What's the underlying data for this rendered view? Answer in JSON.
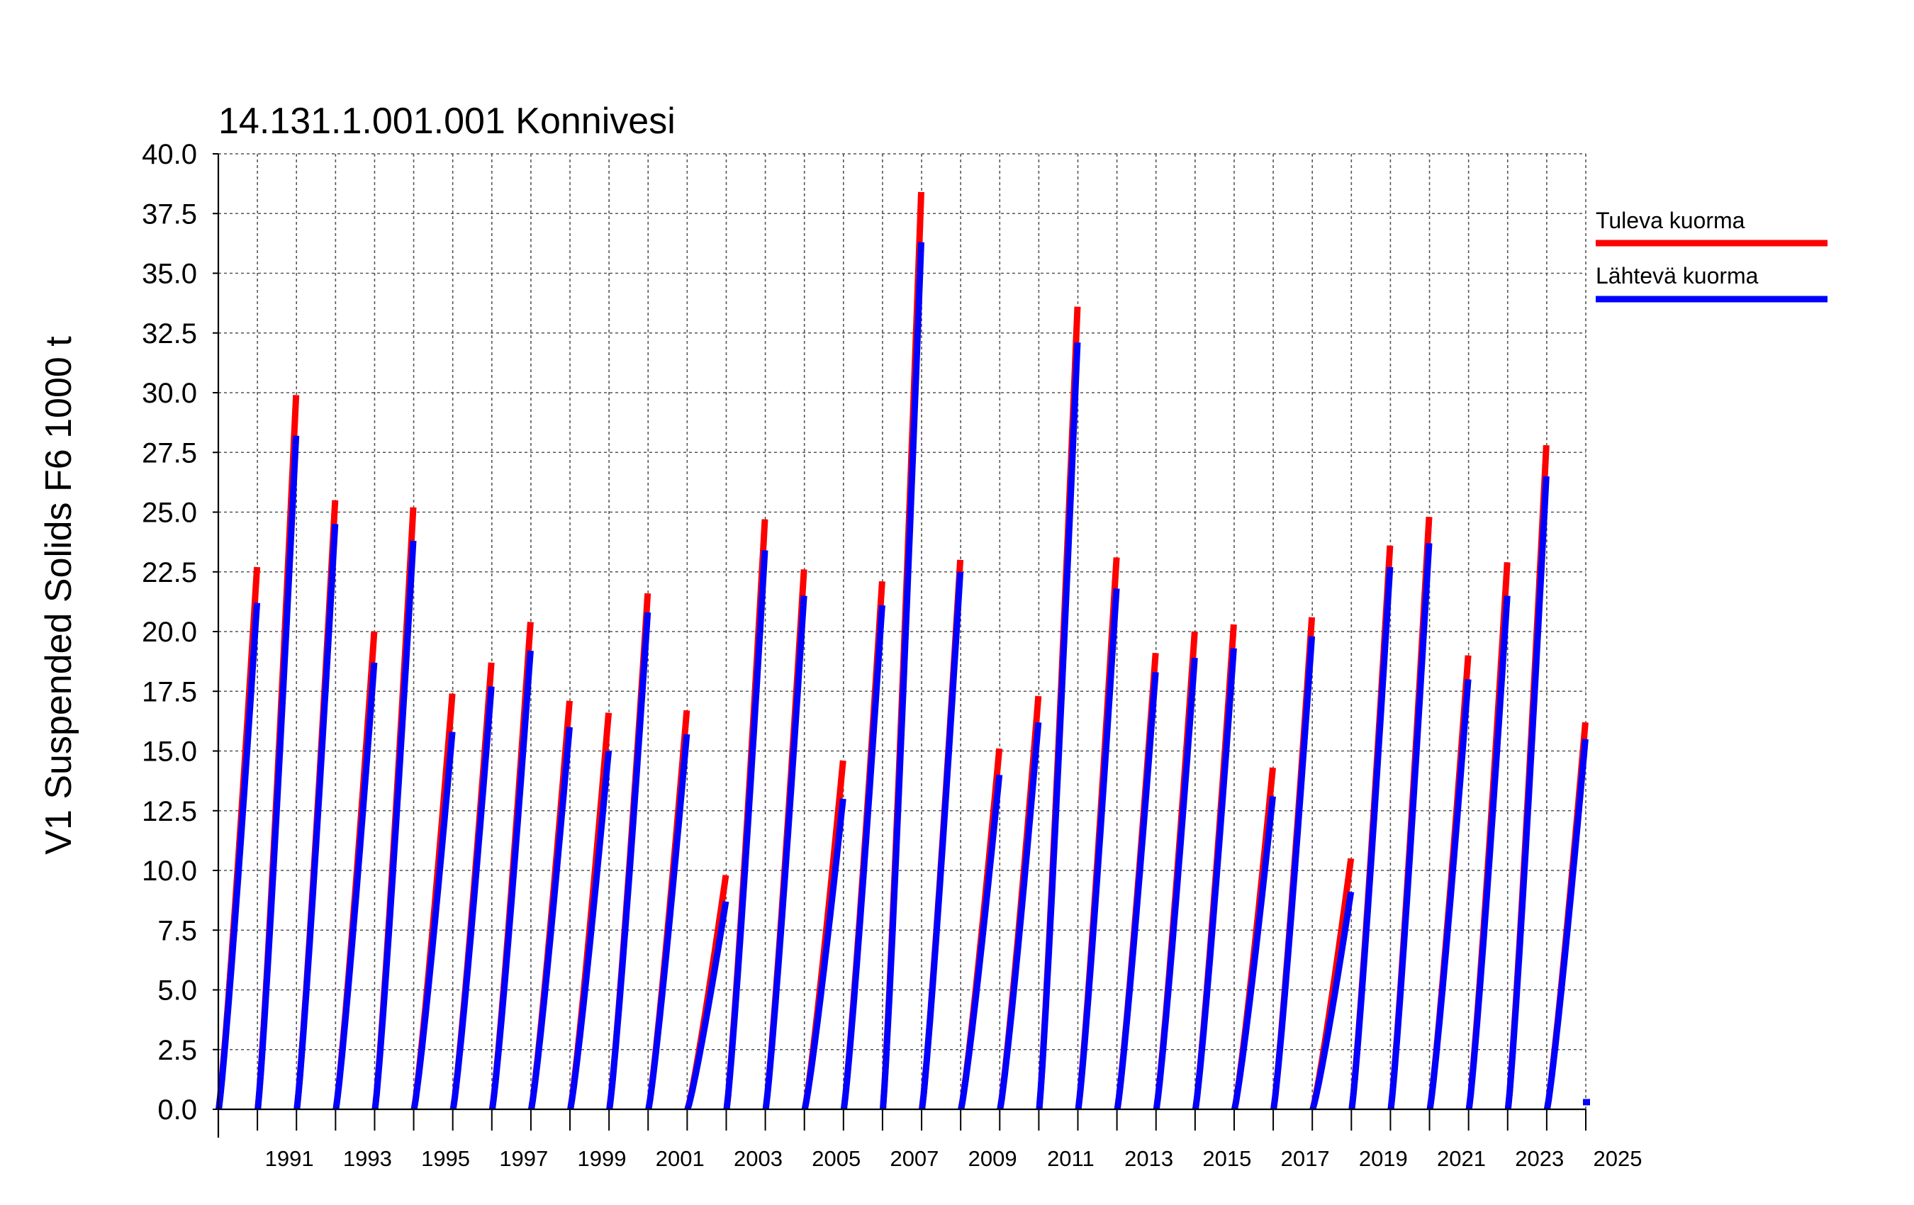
{
  "chart_data": {
    "type": "line",
    "title": "14.131.1.001.001 Konnivesi",
    "ylabel": "V1 Suspended Solids F6 1000 t",
    "xlabel": "",
    "ylim": [
      0,
      40
    ],
    "yticks": [
      "0.0",
      "2.5",
      "5.0",
      "7.5",
      "10.0",
      "12.5",
      "15.0",
      "17.5",
      "20.0",
      "22.5",
      "25.0",
      "27.5",
      "30.0",
      "32.5",
      "35.0",
      "37.5",
      "40.0"
    ],
    "xlim": [
      1990,
      2025
    ],
    "xtick_labels": [
      "1991",
      "1993",
      "1995",
      "1997",
      "1999",
      "2001",
      "2003",
      "2005",
      "2007",
      "2009",
      "2011",
      "2013",
      "2015",
      "2017",
      "2019",
      "2021",
      "2023",
      "2025"
    ],
    "grid": true,
    "legend_position": "right",
    "colors": {
      "tuleva": "#ff0000",
      "lahteva": "#0000ff"
    },
    "series": [
      {
        "name": "Tuleva kuorma",
        "color": "#ff0000",
        "annual_totals": [
          22.7,
          29.9,
          25.5,
          20.0,
          25.2,
          17.4,
          18.7,
          20.4,
          17.1,
          16.6,
          21.6,
          16.7,
          9.8,
          24.7,
          22.6,
          14.6,
          22.1,
          38.4,
          23.0,
          15.1,
          17.3,
          33.6,
          23.1,
          19.1,
          20.0,
          20.3,
          14.3,
          20.6,
          10.5,
          23.6,
          24.8,
          19.0,
          22.9,
          27.8,
          16.2
        ]
      },
      {
        "name": "Lähtevä kuorma",
        "color": "#0000ff",
        "annual_totals": [
          21.2,
          28.2,
          24.5,
          18.7,
          23.8,
          15.8,
          17.7,
          19.2,
          16.0,
          15.0,
          20.8,
          15.7,
          8.7,
          23.4,
          21.5,
          13.0,
          21.1,
          36.3,
          22.5,
          14.0,
          16.2,
          32.1,
          21.8,
          18.3,
          18.9,
          19.3,
          13.1,
          19.8,
          9.1,
          22.7,
          23.7,
          18.0,
          21.5,
          26.5,
          15.5
        ]
      }
    ],
    "years": [
      1990,
      1991,
      1992,
      1993,
      1994,
      1995,
      1996,
      1997,
      1998,
      1999,
      2000,
      2001,
      2002,
      2003,
      2004,
      2005,
      2006,
      2007,
      2008,
      2009,
      2010,
      2011,
      2012,
      2013,
      2014,
      2015,
      2016,
      2017,
      2018,
      2019,
      2020,
      2021,
      2022,
      2023,
      2024
    ]
  }
}
